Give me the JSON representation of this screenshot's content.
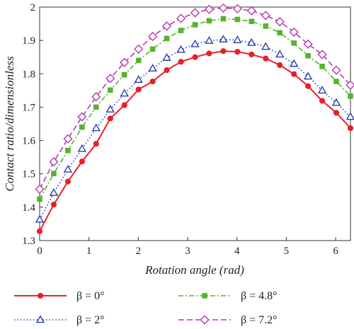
{
  "chart_data": {
    "type": "line",
    "title": "",
    "xlabel": "Rotation angle (rad)",
    "ylabel": "Contact ratio/dimensionless",
    "xlim": [
      0,
      6.3
    ],
    "ylim": [
      1.3,
      2.0
    ],
    "xticks": [
      0,
      1,
      2,
      3,
      4,
      5,
      6
    ],
    "yticks": [
      1.3,
      1.4,
      1.5,
      1.6,
      1.7,
      1.8,
      1.9,
      2.0
    ],
    "x_tick_labels": [
      "0",
      "1",
      "2",
      "3",
      "4",
      "5",
      "6"
    ],
    "y_tick_labels": [
      "1.3",
      "1.4",
      "1.5",
      "1.6",
      "1.7",
      "1.8",
      "1.9",
      "2"
    ],
    "grid": false,
    "legend_position": "bottom",
    "x": [
      0,
      0.286,
      0.573,
      0.859,
      1.145,
      1.432,
      1.718,
      2.005,
      2.291,
      2.577,
      2.864,
      3.15,
      3.436,
      3.723,
      4.009,
      4.295,
      4.582,
      4.868,
      5.155,
      5.441,
      5.727,
      6.014,
      6.3
    ],
    "series": [
      {
        "name": "β = 0°",
        "color": "#e8202a",
        "marker": "circle",
        "dash": "solid",
        "values": [
          1.328,
          1.408,
          1.477,
          1.537,
          1.59,
          1.666,
          1.706,
          1.753,
          1.777,
          1.811,
          1.836,
          1.85,
          1.861,
          1.868,
          1.866,
          1.858,
          1.846,
          1.826,
          1.799,
          1.763,
          1.719,
          1.683,
          1.637
        ]
      },
      {
        "name": "β = 2°",
        "color": "#2b3ea6",
        "marker": "triangle",
        "dash": "dotted",
        "values": [
          1.363,
          1.443,
          1.513,
          1.575,
          1.637,
          1.693,
          1.741,
          1.782,
          1.816,
          1.848,
          1.872,
          1.889,
          1.899,
          1.903,
          1.901,
          1.893,
          1.881,
          1.858,
          1.83,
          1.792,
          1.75,
          1.713,
          1.671
        ]
      },
      {
        "name": "β = 4.8°",
        "color": "#55b42e",
        "marker": "square",
        "dash": "dashdot",
        "values": [
          1.424,
          1.501,
          1.57,
          1.64,
          1.7,
          1.751,
          1.797,
          1.84,
          1.874,
          1.906,
          1.93,
          1.947,
          1.959,
          1.965,
          1.963,
          1.957,
          1.943,
          1.923,
          1.892,
          1.854,
          1.822,
          1.777,
          1.733
        ]
      },
      {
        "name": "β = 7.2°",
        "color": "#b43ab0",
        "marker": "diamond",
        "dash": "dashed",
        "values": [
          1.454,
          1.536,
          1.605,
          1.671,
          1.731,
          1.786,
          1.834,
          1.874,
          1.912,
          1.943,
          1.966,
          1.983,
          1.993,
          1.997,
          1.995,
          1.989,
          1.975,
          1.956,
          1.925,
          1.889,
          1.858,
          1.811,
          1.766
        ]
      }
    ]
  }
}
